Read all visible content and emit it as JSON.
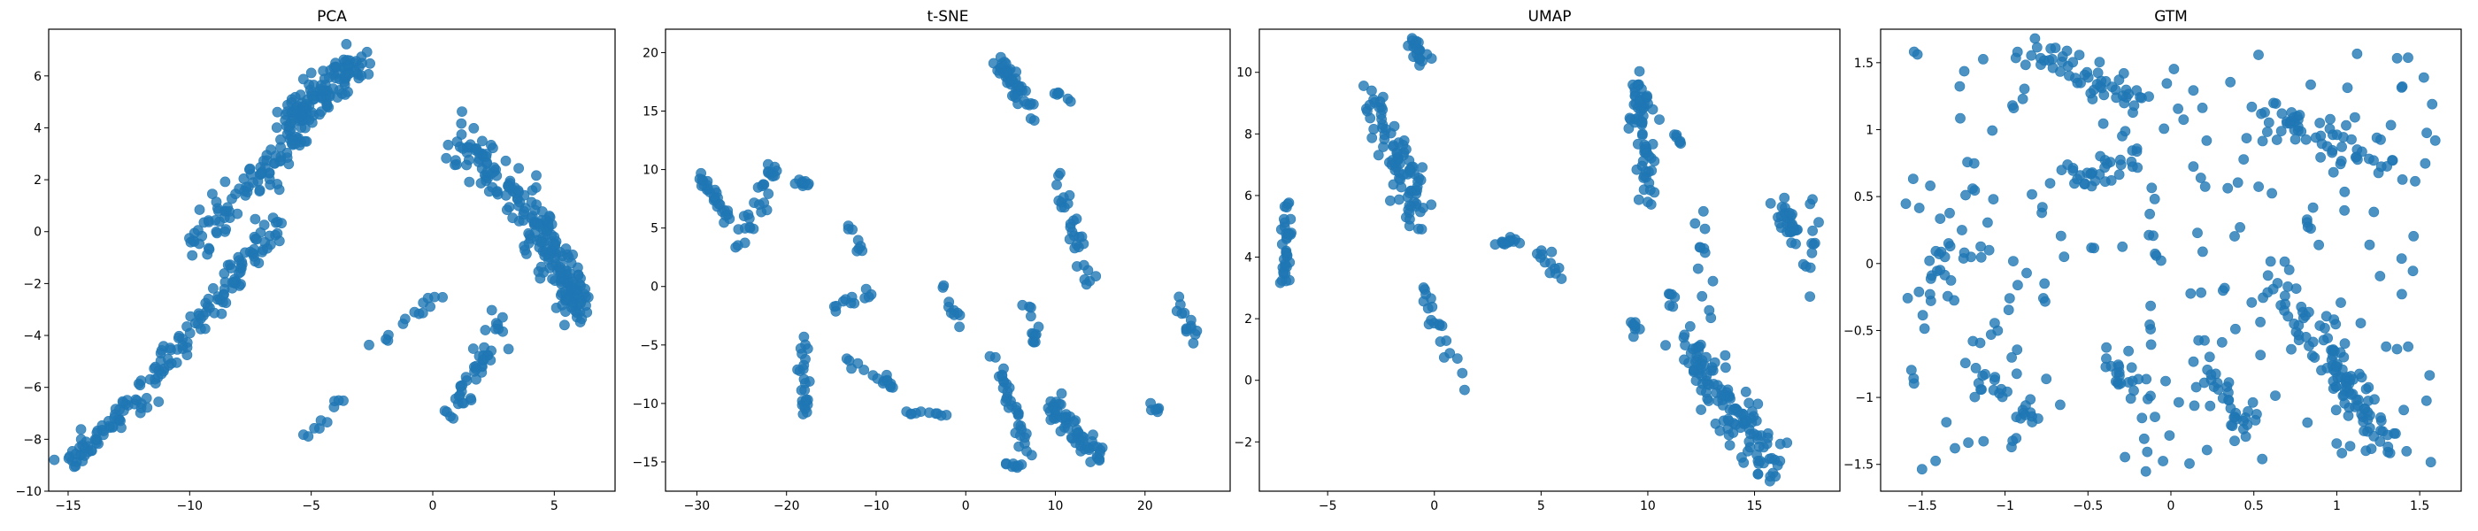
{
  "point_color": "#1f77b4",
  "chart_data": [
    {
      "type": "scatter",
      "title": "PCA",
      "xlabel": "",
      "ylabel": "",
      "xlim": [
        -15.8,
        7.5
      ],
      "ylim": [
        -10,
        7.8
      ],
      "xticks": [
        -15,
        -10,
        -5,
        0,
        5
      ],
      "yticks": [
        -10,
        -8,
        -6,
        -4,
        -2,
        0,
        2,
        4,
        6
      ],
      "clusters": [
        {
          "n": 60,
          "from": [
            -15,
            -9
          ],
          "to": [
            -12,
            -6.4
          ],
          "spread": [
            0.45,
            0.35
          ]
        },
        {
          "n": 55,
          "from": [
            -12,
            -6.2
          ],
          "to": [
            -9,
            -2.6
          ],
          "spread": [
            0.5,
            0.45
          ]
        },
        {
          "n": 55,
          "from": [
            -9,
            -2.8
          ],
          "to": [
            -6.4,
            0.4
          ],
          "spread": [
            0.55,
            0.5
          ]
        },
        {
          "n": 55,
          "from": [
            -10,
            -0.6
          ],
          "to": [
            -6.5,
            2.5
          ],
          "spread": [
            0.6,
            0.55
          ]
        },
        {
          "n": 40,
          "from": [
            -7.5,
            1.5
          ],
          "to": [
            -5.2,
            4.2
          ],
          "spread": [
            0.4,
            0.45
          ]
        },
        {
          "n": 130,
          "from": [
            -6.2,
            4
          ],
          "to": [
            -3,
            6.6
          ],
          "spread": [
            0.65,
            0.55
          ]
        },
        {
          "n": 10,
          "from": [
            -5.4,
            -8
          ],
          "to": [
            -3.6,
            -6.4
          ],
          "spread": [
            0.3,
            0.3
          ]
        },
        {
          "n": 14,
          "from": [
            -3,
            -4.8
          ],
          "to": [
            0.6,
            -2.2
          ],
          "spread": [
            0.35,
            0.35
          ]
        },
        {
          "n": 95,
          "from": [
            1.2,
            3.7
          ],
          "to": [
            4.5,
            0
          ],
          "spread": [
            0.8,
            0.75
          ]
        },
        {
          "n": 140,
          "from": [
            4.3,
            0.3
          ],
          "to": [
            6.1,
            -3.3
          ],
          "spread": [
            0.55,
            0.7
          ]
        },
        {
          "n": 45,
          "from": [
            0.8,
            -7
          ],
          "to": [
            2.8,
            -3.4
          ],
          "spread": [
            0.45,
            0.55
          ]
        }
      ]
    },
    {
      "type": "scatter",
      "title": "t-SNE",
      "xlabel": "",
      "ylabel": "",
      "xlim": [
        -33.5,
        29.5
      ],
      "ylim": [
        -17.5,
        22
      ],
      "xticks": [
        -30,
        -20,
        -10,
        0,
        10,
        20
      ],
      "yticks": [
        -15,
        -10,
        -5,
        0,
        5,
        10,
        15,
        20
      ],
      "clusters": [
        {
          "n": 28,
          "from": [
            -30,
            9.8
          ],
          "to": [
            -26,
            5.5
          ],
          "spread": [
            0.6,
            0.4
          ]
        },
        {
          "n": 30,
          "from": [
            -25,
            4
          ],
          "to": [
            -21,
            10.5
          ],
          "spread": [
            0.9,
            0.8
          ]
        },
        {
          "n": 10,
          "from": [
            -19,
            9.2
          ],
          "to": [
            -17.5,
            8.6
          ],
          "spread": [
            0.4,
            0.3
          ]
        },
        {
          "n": 26,
          "from": [
            -18,
            -4.5
          ],
          "to": [
            -18,
            -11
          ],
          "spread": [
            0.45,
            0.6
          ]
        },
        {
          "n": 8,
          "from": [
            -13,
            5
          ],
          "to": [
            -11.5,
            2.5
          ],
          "spread": [
            0.4,
            0.4
          ]
        },
        {
          "n": 12,
          "from": [
            -15,
            -1.5
          ],
          "to": [
            -10,
            -0.5
          ],
          "spread": [
            0.6,
            0.6
          ]
        },
        {
          "n": 16,
          "from": [
            -13.5,
            -6.5
          ],
          "to": [
            -8,
            -8.5
          ],
          "spread": [
            0.6,
            0.6
          ]
        },
        {
          "n": 10,
          "from": [
            -7,
            -10.5
          ],
          "to": [
            -2,
            -11
          ],
          "spread": [
            0.5,
            0.4
          ]
        },
        {
          "n": 10,
          "from": [
            -3,
            0.3
          ],
          "to": [
            0,
            -4
          ],
          "spread": [
            0.5,
            0.5
          ]
        },
        {
          "n": 48,
          "from": [
            3.5,
            19.5
          ],
          "to": [
            7.5,
            15
          ],
          "spread": [
            0.9,
            0.9
          ]
        },
        {
          "n": 6,
          "from": [
            10,
            16.5
          ],
          "to": [
            11.5,
            16
          ],
          "spread": [
            0.3,
            0.3
          ]
        },
        {
          "n": 34,
          "from": [
            3,
            -5.5
          ],
          "to": [
            7,
            -14
          ],
          "spread": [
            0.75,
            0.7
          ]
        },
        {
          "n": 60,
          "from": [
            9.5,
            -10
          ],
          "to": [
            15,
            -15
          ],
          "spread": [
            1.0,
            0.8
          ]
        },
        {
          "n": 30,
          "from": [
            10,
            9.5
          ],
          "to": [
            14,
            0
          ],
          "spread": [
            0.7,
            0.9
          ]
        },
        {
          "n": 12,
          "from": [
            7,
            -1
          ],
          "to": [
            8,
            -5
          ],
          "spread": [
            0.5,
            0.6
          ]
        },
        {
          "n": 14,
          "from": [
            23.5,
            -1
          ],
          "to": [
            26,
            -5
          ],
          "spread": [
            0.6,
            0.6
          ]
        },
        {
          "n": 8,
          "from": [
            4,
            -15
          ],
          "to": [
            6,
            -15.5
          ],
          "spread": [
            0.4,
            0.3
          ]
        },
        {
          "n": 6,
          "from": [
            20.5,
            -10
          ],
          "to": [
            21.5,
            -10.8
          ],
          "spread": [
            0.3,
            0.3
          ]
        }
      ]
    },
    {
      "type": "scatter",
      "title": "UMAP",
      "xlabel": "",
      "ylabel": "",
      "xlim": [
        -8.2,
        19
      ],
      "ylim": [
        -3.6,
        11.4
      ],
      "xticks": [
        -5,
        0,
        5,
        10,
        15
      ],
      "yticks": [
        -2,
        0,
        2,
        4,
        6,
        8,
        10
      ],
      "clusters": [
        {
          "n": 35,
          "from": [
            -7,
            5.7
          ],
          "to": [
            -7,
            3.2
          ],
          "spread": [
            0.2,
            0.5
          ]
        },
        {
          "n": 90,
          "from": [
            -3,
            9.2
          ],
          "to": [
            -0.5,
            5.3
          ],
          "spread": [
            0.6,
            0.6
          ]
        },
        {
          "n": 22,
          "from": [
            -1,
            11
          ],
          "to": [
            -0.5,
            10.3
          ],
          "spread": [
            0.3,
            0.25
          ]
        },
        {
          "n": 20,
          "from": [
            -0.5,
            2.8
          ],
          "to": [
            1.5,
            -0.2
          ],
          "spread": [
            0.35,
            0.5
          ]
        },
        {
          "n": 12,
          "from": [
            2.8,
            4.3
          ],
          "to": [
            4,
            4.6
          ],
          "spread": [
            0.3,
            0.15
          ]
        },
        {
          "n": 12,
          "from": [
            4.8,
            4.2
          ],
          "to": [
            6,
            3.2
          ],
          "spread": [
            0.3,
            0.25
          ]
        },
        {
          "n": 70,
          "from": [
            9.5,
            10.2
          ],
          "to": [
            10,
            6
          ],
          "spread": [
            0.4,
            0.6
          ]
        },
        {
          "n": 6,
          "from": [
            11.2,
            7.9
          ],
          "to": [
            11.5,
            7.7
          ],
          "spread": [
            0.2,
            0.2
          ]
        },
        {
          "n": 8,
          "from": [
            9.3,
            1.8
          ],
          "to": [
            9.5,
            1.5
          ],
          "spread": [
            0.2,
            0.2
          ]
        },
        {
          "n": 12,
          "from": [
            12.5,
            5.2
          ],
          "to": [
            12.8,
            2.5
          ],
          "spread": [
            0.3,
            0.5
          ]
        },
        {
          "n": 6,
          "from": [
            11,
            3.2
          ],
          "to": [
            11.2,
            2.2
          ],
          "spread": [
            0.2,
            0.3
          ]
        },
        {
          "n": 130,
          "from": [
            11.8,
            1
          ],
          "to": [
            16,
            -2.8
          ],
          "spread": [
            0.9,
            0.75
          ]
        },
        {
          "n": 28,
          "from": [
            16.3,
            5.6
          ],
          "to": [
            17,
            4.6
          ],
          "spread": [
            0.4,
            0.35
          ]
        },
        {
          "n": 12,
          "from": [
            17.8,
            6
          ],
          "to": [
            17.5,
            2.5
          ],
          "spread": [
            0.25,
            0.5
          ]
        }
      ]
    },
    {
      "type": "scatter",
      "title": "GTM",
      "xlabel": "",
      "ylabel": "",
      "xlim": [
        -1.75,
        1.75
      ],
      "ylim": [
        -1.7,
        1.75
      ],
      "xticks": [
        -1.5,
        -1.0,
        -0.5,
        0.0,
        0.5,
        1.0,
        1.5
      ],
      "yticks": [
        -1.5,
        -1.0,
        -0.5,
        0.0,
        0.5,
        1.0,
        1.5
      ],
      "clusters": [
        {
          "n": 220,
          "from": [
            -1.6,
            -1.6
          ],
          "to": [
            1.6,
            1.6
          ],
          "spread": [
            0,
            0
          ],
          "uniform": true
        },
        {
          "n": 45,
          "from": [
            -0.85,
            1.6
          ],
          "to": [
            -0.2,
            1.2
          ],
          "spread": [
            0.12,
            0.1
          ]
        },
        {
          "n": 55,
          "from": [
            0.55,
            1.15
          ],
          "to": [
            1.3,
            0.7
          ],
          "spread": [
            0.14,
            0.12
          ]
        },
        {
          "n": 60,
          "from": [
            0.6,
            -0.2
          ],
          "to": [
            1.2,
            -1.0
          ],
          "spread": [
            0.14,
            0.16
          ]
        },
        {
          "n": 40,
          "from": [
            1.0,
            -0.8
          ],
          "to": [
            1.3,
            -1.4
          ],
          "spread": [
            0.1,
            0.1
          ]
        },
        {
          "n": 30,
          "from": [
            -0.6,
            0.6
          ],
          "to": [
            -0.2,
            0.8
          ],
          "spread": [
            0.1,
            0.1
          ]
        },
        {
          "n": 25,
          "from": [
            -1.5,
            -0.3
          ],
          "to": [
            -1.2,
            0.7
          ],
          "spread": [
            0.12,
            0.12
          ]
        },
        {
          "n": 30,
          "from": [
            0.2,
            -0.8
          ],
          "to": [
            0.5,
            -1.3
          ],
          "spread": [
            0.1,
            0.12
          ]
        },
        {
          "n": 22,
          "from": [
            -1.2,
            -0.8
          ],
          "to": [
            -0.8,
            -1.2
          ],
          "spread": [
            0.12,
            0.1
          ]
        },
        {
          "n": 20,
          "from": [
            -0.4,
            -0.6
          ],
          "to": [
            -0.2,
            -1.0
          ],
          "spread": [
            0.08,
            0.1
          ]
        }
      ]
    }
  ]
}
